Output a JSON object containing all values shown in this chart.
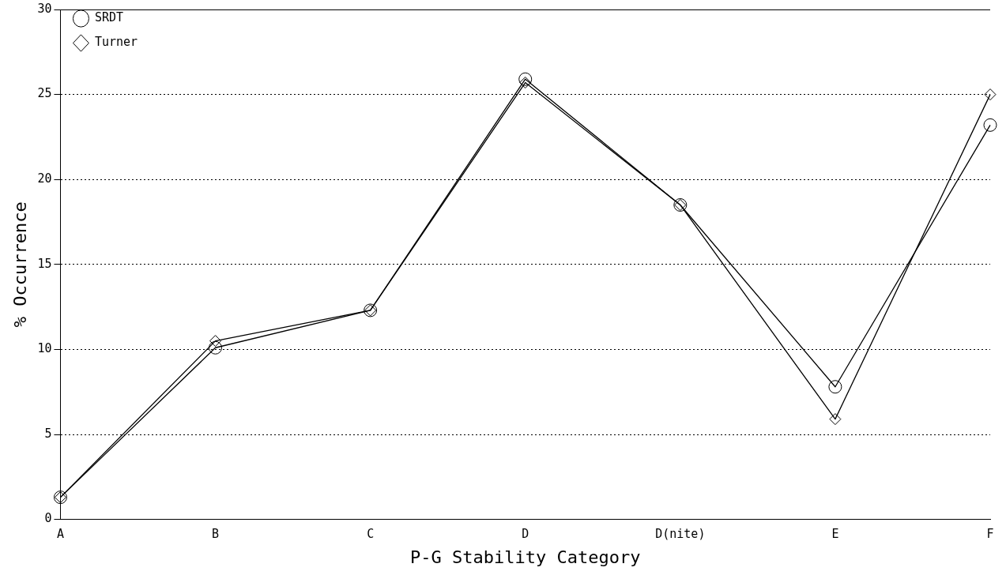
{
  "chart_data": {
    "type": "line",
    "xlabel": "P-G Stability Category",
    "ylabel": "% Occurrence",
    "categories": [
      "A",
      "B",
      "C",
      "D",
      "D(nite)",
      "E",
      "F"
    ],
    "series": [
      {
        "name": "SRDT",
        "color": "#000000",
        "marker": "circle",
        "values": [
          1.3,
          10.1,
          12.3,
          25.9,
          18.5,
          7.8,
          23.2
        ]
      },
      {
        "name": "Turner",
        "color": "#000000",
        "marker": "diamond",
        "values": [
          1.3,
          10.5,
          12.3,
          25.7,
          18.5,
          5.9,
          25.0
        ]
      }
    ],
    "ylim": [
      0,
      30
    ],
    "yticks": [
      0,
      5,
      10,
      15,
      20,
      25,
      30
    ],
    "grid": "y",
    "legend": "top left",
    "line_style": "solid"
  }
}
